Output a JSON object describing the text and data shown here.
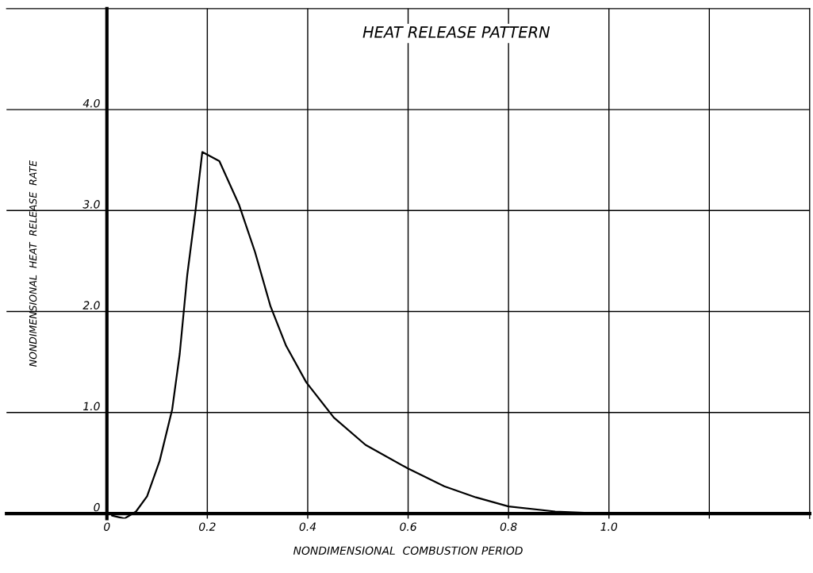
{
  "chart_data": {
    "type": "line",
    "title": "HEAT RELEASE PATTERN",
    "xlabel": "NONDIMENSIONAL  COMBUSTION PERIOD",
    "ylabel": "NONDIMENSIONAL  HEAT  RELEASE  RATE",
    "series": [
      {
        "color": "#000000",
        "x": [
          0.01,
          0.035,
          0.058,
          0.08,
          0.105,
          0.13,
          0.145,
          0.16,
          0.176,
          0.19,
          0.224,
          0.263,
          0.295,
          0.326,
          0.357,
          0.397,
          0.452,
          0.515,
          0.598,
          0.672,
          0.735,
          0.8,
          0.893,
          0.99
        ],
        "values": [
          -0.02,
          -0.05,
          0.02,
          0.17,
          0.52,
          1.03,
          1.58,
          2.36,
          2.98,
          3.58,
          3.49,
          3.06,
          2.59,
          2.05,
          1.66,
          1.3,
          0.95,
          0.68,
          0.45,
          0.27,
          0.16,
          0.07,
          0.02,
          0.0
        ]
      }
    ],
    "xlim": [
      -0.2,
      1.4
    ],
    "ylim": [
      -0.05,
      5.0
    ],
    "xticks": [
      0,
      0.2,
      0.4,
      0.6,
      0.8,
      {
        "value": 1.0,
        "label": "1.0"
      },
      {
        "value": 1.2,
        "label": null
      },
      {
        "value": 1.4,
        "label": null
      }
    ],
    "yticks": [
      0,
      {
        "value": 1.0,
        "label": "1.0"
      },
      {
        "value": 2.0,
        "label": "2.0"
      },
      {
        "value": 3.0,
        "label": "3.0"
      },
      {
        "value": 4.0,
        "label": "4.0"
      }
    ],
    "grid": true,
    "legend": false,
    "marker": "none",
    "line_style": "solid"
  }
}
